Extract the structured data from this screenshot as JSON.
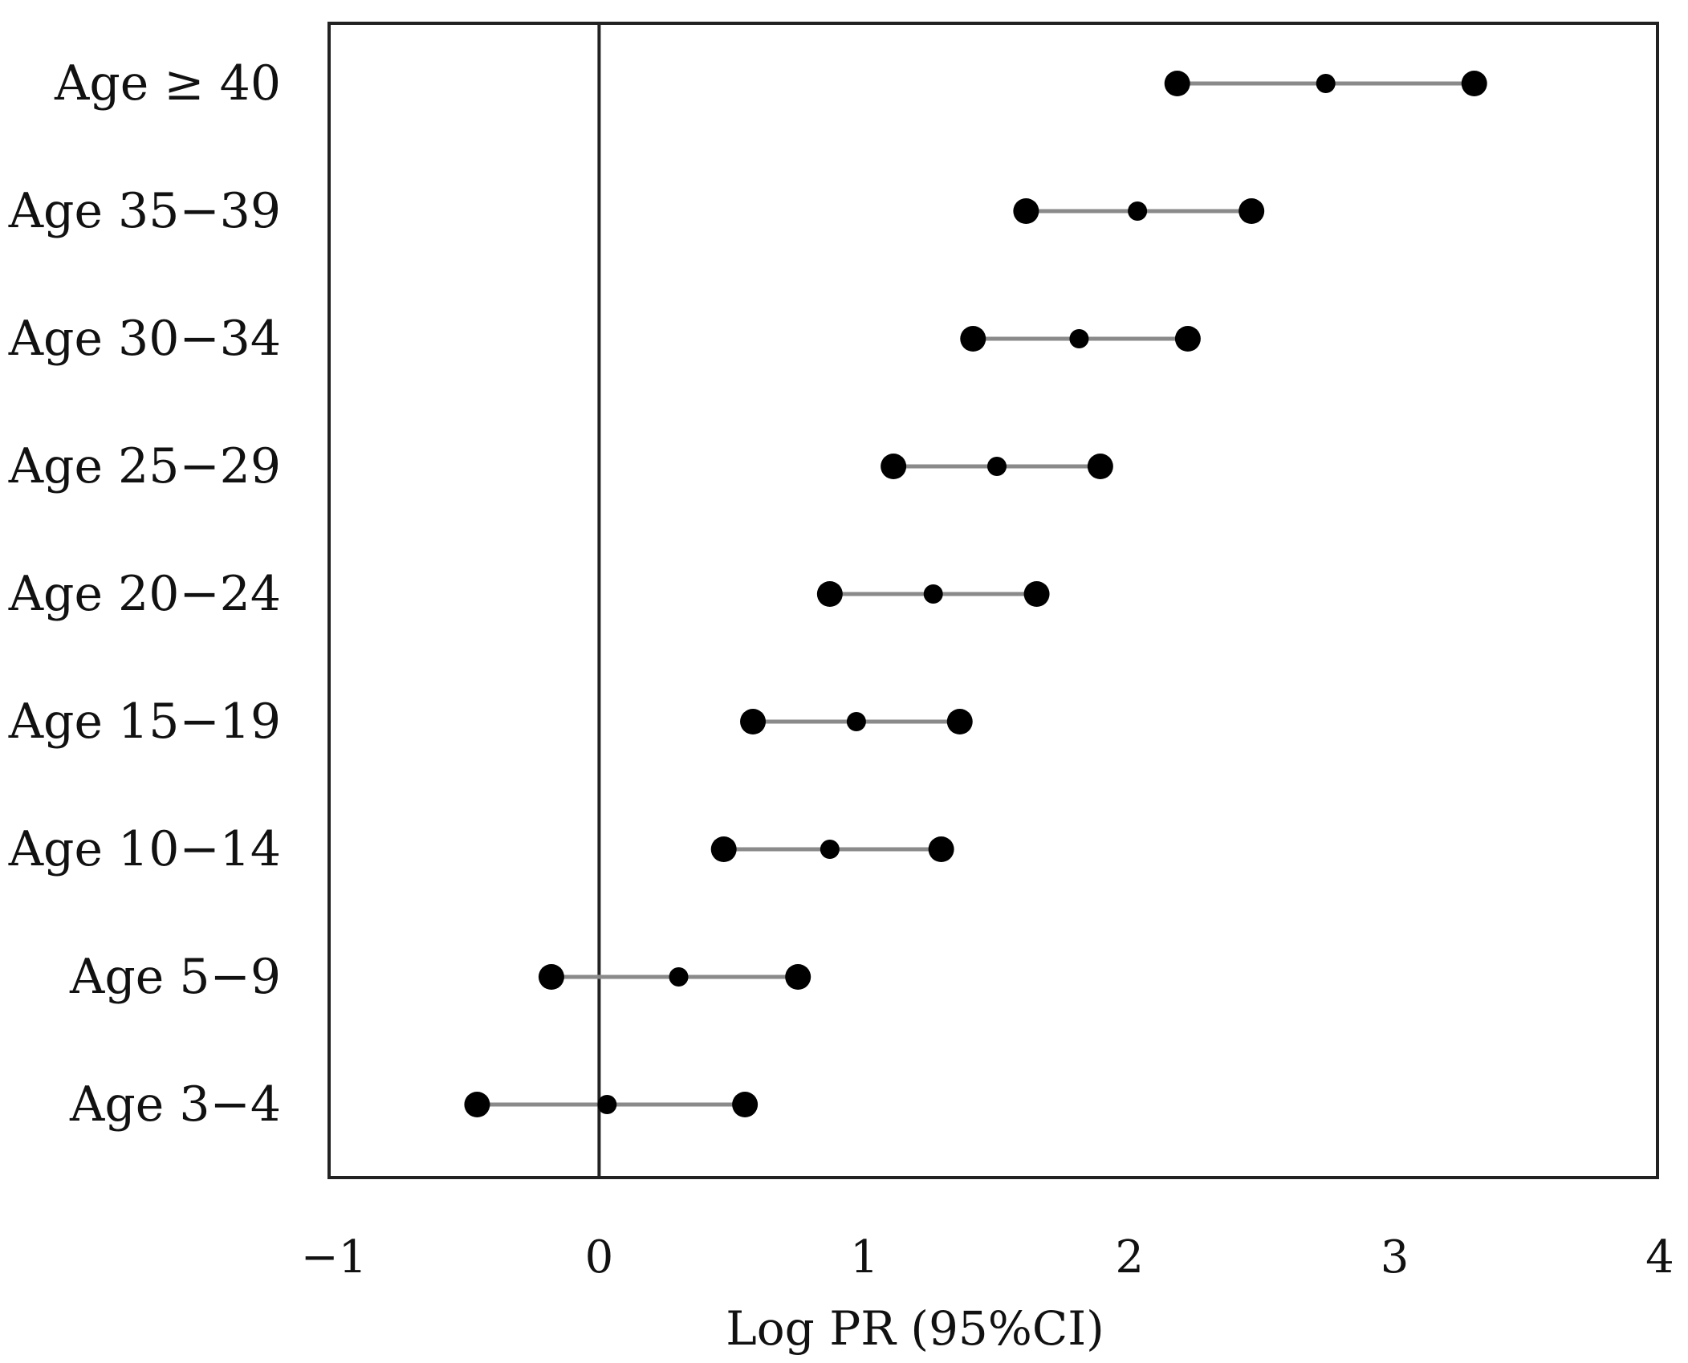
{
  "chart_data": {
    "type": "scatter",
    "subtype": "forest-plot",
    "title": "",
    "xlabel": "Log  PR (95%CI)",
    "ylabel": "",
    "xlim": [
      -1,
      4
    ],
    "xticks": [
      "−1",
      "0",
      "1",
      "2",
      "3",
      "4"
    ],
    "xtick_values": [
      -1,
      0,
      1,
      2,
      3,
      4
    ],
    "reference_line_x": 0,
    "grid": false,
    "legend": "none",
    "rows": [
      {
        "label": "Age  ≥ 40",
        "lower": 2.18,
        "estimate": 2.74,
        "upper": 3.3
      },
      {
        "label": "Age 35−39",
        "lower": 1.61,
        "estimate": 2.03,
        "upper": 2.46
      },
      {
        "label": "Age 30−34",
        "lower": 1.41,
        "estimate": 1.81,
        "upper": 2.22
      },
      {
        "label": "Age 25−29",
        "lower": 1.11,
        "estimate": 1.5,
        "upper": 1.89
      },
      {
        "label": "Age 20−24",
        "lower": 0.87,
        "estimate": 1.26,
        "upper": 1.65
      },
      {
        "label": "Age 15−19",
        "lower": 0.58,
        "estimate": 0.97,
        "upper": 1.36
      },
      {
        "label": "Age 10−14",
        "lower": 0.47,
        "estimate": 0.87,
        "upper": 1.29
      },
      {
        "label": "Age 5−9",
        "lower": -0.18,
        "estimate": 0.3,
        "upper": 0.75
      },
      {
        "label": "Age 3−4",
        "lower": -0.46,
        "estimate": 0.03,
        "upper": 0.55
      }
    ],
    "colors": {
      "marker": "#000000",
      "ci_line": "#8a8a8a",
      "frame": "#222222",
      "reference_line": "#222222"
    }
  }
}
